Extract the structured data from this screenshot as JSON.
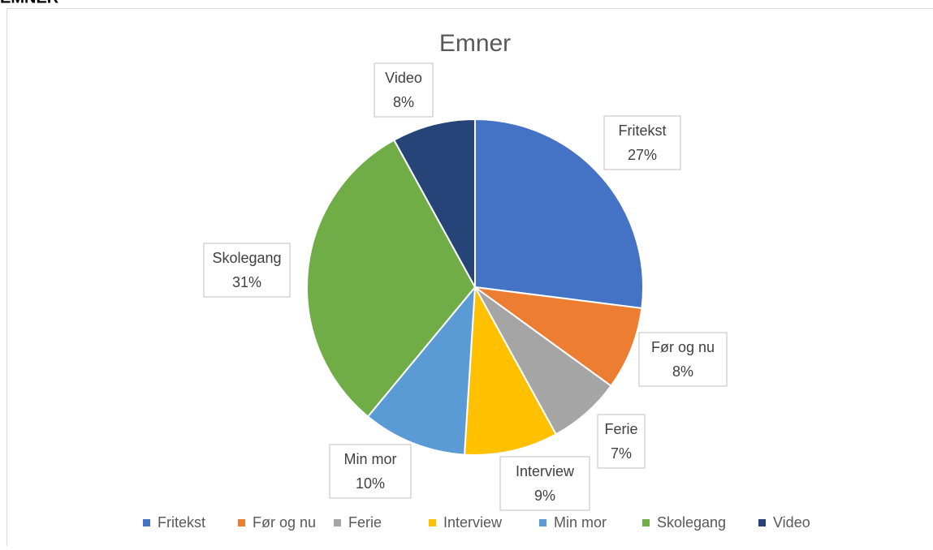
{
  "heading": "EMNER",
  "chart_data": {
    "type": "pie",
    "title": "Emner",
    "categories": [
      "Fritekst",
      "Før og nu",
      "Ferie",
      "Interview",
      "Min mor",
      "Skolegang",
      "Video"
    ],
    "values": [
      27,
      8,
      7,
      9,
      10,
      31,
      8
    ],
    "value_labels": [
      "27%",
      "8%",
      "7%",
      "9%",
      "10%",
      "31%",
      "8%"
    ],
    "colors": [
      "#4472c4",
      "#ed7d31",
      "#a5a5a5",
      "#ffc000",
      "#5b9bd5",
      "#70ad47",
      "#264478"
    ],
    "legend": "bottom"
  }
}
